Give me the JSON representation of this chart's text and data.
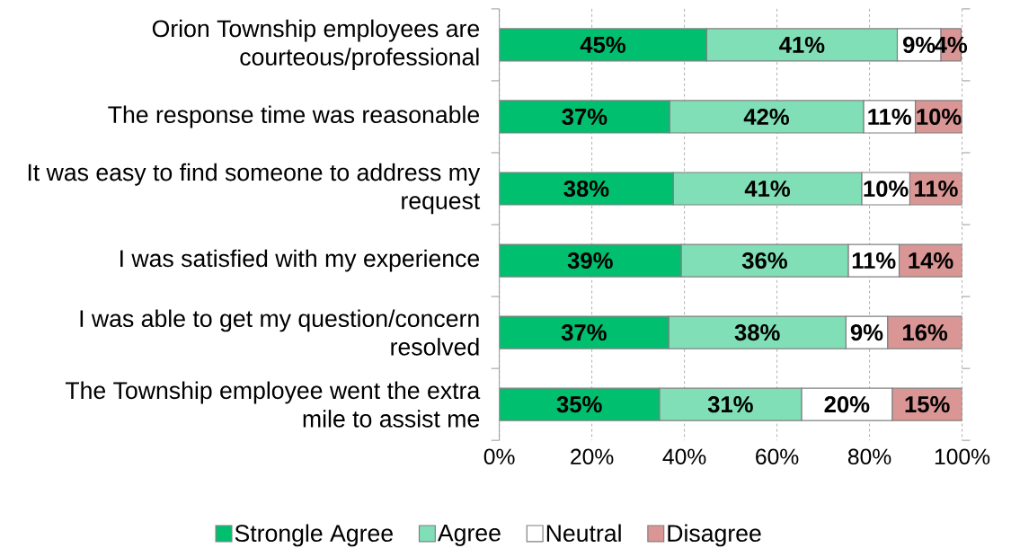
{
  "chart_data": {
    "type": "bar",
    "orientation": "horizontal",
    "stacked": true,
    "categories": [
      "Orion Township employees are courteous/professional",
      "The response time was reasonable",
      "It was easy to find someone to address my request",
      "I was satisfied with my experience",
      "I was able to get my question/concern resolved",
      "The Township employee went the extra mile to assist me"
    ],
    "series": [
      {
        "name": "Strongle Agree",
        "color": "#00bf6f",
        "values": [
          44.8,
          36.8,
          37.6,
          39.3,
          36.6,
          34.6
        ],
        "value_labels": [
          "45%",
          "37%",
          "38%",
          "39%",
          "37%",
          "35%"
        ]
      },
      {
        "name": "Agree",
        "color": "#80dfb7",
        "values": [
          41.2,
          41.9,
          40.7,
          36.1,
          38.3,
          30.7
        ],
        "value_labels": [
          "41%",
          "42%",
          "41%",
          "36%",
          "38%",
          "31%"
        ]
      },
      {
        "name": "Neutral",
        "color": "#ffffff",
        "values": [
          9.4,
          11.2,
          10.4,
          11.0,
          9.0,
          19.6
        ],
        "value_labels": [
          "9%",
          "11%",
          "10%",
          "11%",
          "9%",
          "20%"
        ]
      },
      {
        "name": "Disagree",
        "color": "#d99694",
        "values": [
          4.4,
          10.1,
          11.3,
          13.6,
          16.1,
          15.1
        ],
        "value_labels": [
          "4%",
          "10%",
          "11%",
          "14%",
          "16%",
          "15%"
        ]
      }
    ],
    "xlim": [
      0,
      100
    ],
    "xticks": [
      {
        "value": 0,
        "label": "0%"
      },
      {
        "value": 20,
        "label": "20%"
      },
      {
        "value": 40,
        "label": "40%"
      },
      {
        "value": 60,
        "label": "60%"
      },
      {
        "value": 80,
        "label": "80%"
      },
      {
        "value": 100,
        "label": "100%"
      }
    ],
    "grid": "x",
    "legend": "bottom"
  }
}
